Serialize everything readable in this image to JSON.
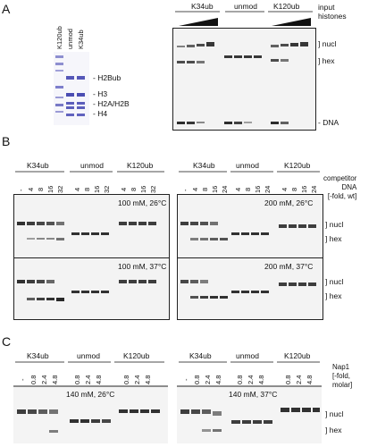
{
  "panelA": {
    "letter": "A",
    "coomassie_lanes": [
      "K120ub",
      "unmod",
      "K34ub"
    ],
    "coomassie_bands": [
      "H2Bub",
      "H3",
      "H2A/H2B",
      "H4"
    ],
    "titration_groups": [
      "K34ub",
      "unmod",
      "K120ub"
    ],
    "input_label": [
      "input",
      "histones"
    ],
    "right_labels": [
      "nucl",
      "hex",
      "DNA"
    ]
  },
  "panelB": {
    "letter": "B",
    "groups_left": [
      "K34ub",
      "unmod",
      "K120ub"
    ],
    "groups_right": [
      "K34ub",
      "unmod",
      "K120ub"
    ],
    "lanes_left": [
      "-",
      "4",
      "8",
      "16",
      "32"
    ],
    "lanes_right": [
      "-",
      "4",
      "8",
      "16",
      "24"
    ],
    "competitor": [
      "competitor",
      "DNA",
      "[-fold, wt]"
    ],
    "conditions": [
      "100 mM, 26°C",
      "200 mM, 26°C",
      "100 mM, 37°C",
      "200 mM, 37°C"
    ],
    "right_labels": [
      "nucl",
      "hex",
      "nucl",
      "hex"
    ]
  },
  "panelC": {
    "letter": "C",
    "groups": [
      "K34ub",
      "unmod",
      "K120ub"
    ],
    "lanes": [
      "-",
      "0.8",
      "2.4",
      "4.8"
    ],
    "nap1": [
      "Nap1",
      "[-fold,",
      "molar]"
    ],
    "conditions": [
      "140 mM, 26°C",
      "140 mM, 37°C"
    ],
    "right_labels": [
      "nucl",
      "hex"
    ]
  }
}
